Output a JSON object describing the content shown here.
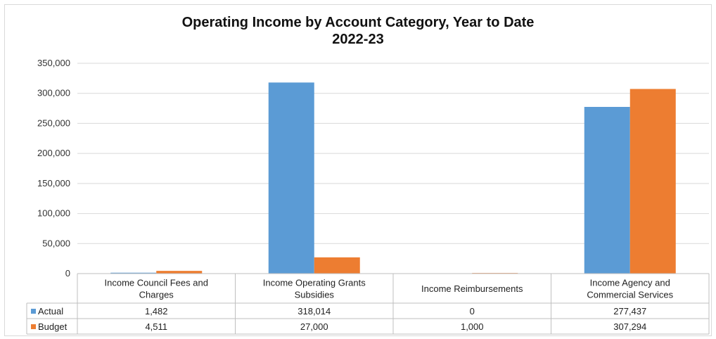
{
  "chart_data": {
    "type": "bar",
    "title": "Operating Income by Account Category, Year to Date",
    "subtitle": "2022-23",
    "categories": [
      [
        "Income Council Fees and",
        "Charges"
      ],
      [
        "Income Operating Grants",
        "Subsidies"
      ],
      [
        "Income Reimbursements"
      ],
      [
        "Income Agency and",
        "Commercial Services"
      ]
    ],
    "series": [
      {
        "name": "Actual",
        "color": "#5b9bd5",
        "values": [
          1482,
          318014,
          0,
          277437
        ],
        "labels": [
          "1,482",
          "318,014",
          "0",
          "277,437"
        ]
      },
      {
        "name": "Budget",
        "color": "#ed7d31",
        "values": [
          4511,
          27000,
          1000,
          307294
        ],
        "labels": [
          "4,511",
          "27,000",
          "1,000",
          "307,294"
        ]
      }
    ],
    "ylim": [
      0,
      350000
    ],
    "yticks": [
      "0",
      "50,000",
      "100,000",
      "150,000",
      "200,000",
      "250,000",
      "300,000",
      "350,000"
    ],
    "grid": true,
    "legend": "data-table"
  }
}
